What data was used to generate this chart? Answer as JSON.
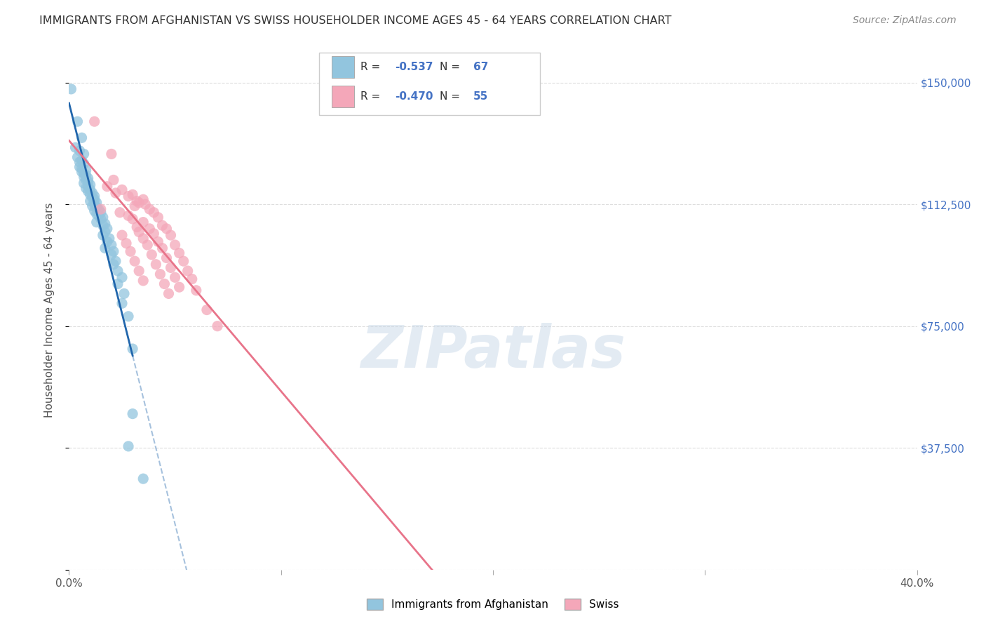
{
  "title": "IMMIGRANTS FROM AFGHANISTAN VS SWISS HOUSEHOLDER INCOME AGES 45 - 64 YEARS CORRELATION CHART",
  "source": "Source: ZipAtlas.com",
  "ylabel": "Householder Income Ages 45 - 64 years",
  "legend_label1": "Immigrants from Afghanistan",
  "legend_label2": "Swiss",
  "R1": "-0.537",
  "N1": "67",
  "R2": "-0.470",
  "N2": "55",
  "xmin": 0.0,
  "xmax": 0.4,
  "ymin": 0,
  "ymax": 160000,
  "yticks": [
    0,
    37500,
    75000,
    112500,
    150000
  ],
  "ytick_labels": [
    "",
    "$37,500",
    "$75,000",
    "$112,500",
    "$150,000"
  ],
  "xtick_positions": [
    0.0,
    0.1,
    0.2,
    0.3,
    0.4
  ],
  "xtick_labels": [
    "0.0%",
    "",
    "",
    "",
    "40.0%"
  ],
  "color_blue": "#92c5de",
  "color_pink": "#f4a7b9",
  "line_blue": "#2166ac",
  "line_pink": "#e8748a",
  "scatter_alpha": 0.75,
  "scatter_size": 120,
  "blue_points": [
    [
      0.001,
      148000
    ],
    [
      0.004,
      138000
    ],
    [
      0.006,
      133000
    ],
    [
      0.003,
      130000
    ],
    [
      0.005,
      129000
    ],
    [
      0.007,
      128000
    ],
    [
      0.004,
      127000
    ],
    [
      0.006,
      126000
    ],
    [
      0.005,
      125500
    ],
    [
      0.007,
      125000
    ],
    [
      0.005,
      124000
    ],
    [
      0.006,
      123500
    ],
    [
      0.008,
      123000
    ],
    [
      0.006,
      122500
    ],
    [
      0.007,
      122000
    ],
    [
      0.008,
      121500
    ],
    [
      0.007,
      121000
    ],
    [
      0.009,
      120500
    ],
    [
      0.008,
      120000
    ],
    [
      0.009,
      119500
    ],
    [
      0.007,
      119000
    ],
    [
      0.01,
      118500
    ],
    [
      0.009,
      118000
    ],
    [
      0.008,
      117500
    ],
    [
      0.01,
      117000
    ],
    [
      0.009,
      116500
    ],
    [
      0.011,
      116000
    ],
    [
      0.01,
      115500
    ],
    [
      0.012,
      115000
    ],
    [
      0.011,
      114500
    ],
    [
      0.012,
      114000
    ],
    [
      0.01,
      113500
    ],
    [
      0.013,
      113000
    ],
    [
      0.012,
      112500
    ],
    [
      0.011,
      112000
    ],
    [
      0.013,
      111500
    ],
    [
      0.014,
      111000
    ],
    [
      0.012,
      110500
    ],
    [
      0.015,
      110000
    ],
    [
      0.013,
      109500
    ],
    [
      0.014,
      109000
    ],
    [
      0.016,
      108500
    ],
    [
      0.015,
      108000
    ],
    [
      0.013,
      107000
    ],
    [
      0.017,
      106500
    ],
    [
      0.016,
      106000
    ],
    [
      0.018,
      105000
    ],
    [
      0.017,
      104000
    ],
    [
      0.016,
      103000
    ],
    [
      0.019,
      102000
    ],
    [
      0.018,
      101000
    ],
    [
      0.02,
      100000
    ],
    [
      0.017,
      99000
    ],
    [
      0.021,
      98000
    ],
    [
      0.02,
      97000
    ],
    [
      0.022,
      95000
    ],
    [
      0.021,
      94000
    ],
    [
      0.023,
      92000
    ],
    [
      0.025,
      90000
    ],
    [
      0.023,
      88000
    ],
    [
      0.026,
      85000
    ],
    [
      0.025,
      82000
    ],
    [
      0.028,
      78000
    ],
    [
      0.03,
      68000
    ],
    [
      0.03,
      48000
    ],
    [
      0.028,
      38000
    ],
    [
      0.035,
      28000
    ]
  ],
  "pink_points": [
    [
      0.012,
      138000
    ],
    [
      0.02,
      128000
    ],
    [
      0.021,
      120000
    ],
    [
      0.018,
      118000
    ],
    [
      0.025,
      117000
    ],
    [
      0.022,
      116000
    ],
    [
      0.03,
      115500
    ],
    [
      0.028,
      115000
    ],
    [
      0.035,
      114000
    ],
    [
      0.032,
      113500
    ],
    [
      0.033,
      113000
    ],
    [
      0.036,
      112500
    ],
    [
      0.031,
      112000
    ],
    [
      0.015,
      111000
    ],
    [
      0.038,
      111000
    ],
    [
      0.024,
      110000
    ],
    [
      0.04,
      110000
    ],
    [
      0.028,
      109000
    ],
    [
      0.042,
      108500
    ],
    [
      0.03,
      108000
    ],
    [
      0.035,
      107000
    ],
    [
      0.044,
      106000
    ],
    [
      0.032,
      105500
    ],
    [
      0.038,
      105000
    ],
    [
      0.046,
      105000
    ],
    [
      0.033,
      104000
    ],
    [
      0.04,
      103500
    ],
    [
      0.025,
      103000
    ],
    [
      0.048,
      103000
    ],
    [
      0.035,
      102000
    ],
    [
      0.042,
      101000
    ],
    [
      0.027,
      100500
    ],
    [
      0.05,
      100000
    ],
    [
      0.037,
      100000
    ],
    [
      0.044,
      99000
    ],
    [
      0.029,
      98000
    ],
    [
      0.052,
      97500
    ],
    [
      0.039,
      97000
    ],
    [
      0.046,
      96000
    ],
    [
      0.031,
      95000
    ],
    [
      0.054,
      95000
    ],
    [
      0.041,
      94000
    ],
    [
      0.048,
      93000
    ],
    [
      0.033,
      92000
    ],
    [
      0.056,
      92000
    ],
    [
      0.043,
      91000
    ],
    [
      0.05,
      90000
    ],
    [
      0.058,
      89500
    ],
    [
      0.035,
      89000
    ],
    [
      0.045,
      88000
    ],
    [
      0.052,
      87000
    ],
    [
      0.06,
      86000
    ],
    [
      0.047,
      85000
    ],
    [
      0.065,
      80000
    ],
    [
      0.07,
      75000
    ]
  ],
  "background_color": "#ffffff",
  "grid_color": "#dddddd",
  "title_color": "#333333",
  "watermark": "ZIPatlas",
  "watermark_color": "#c8d8e8"
}
